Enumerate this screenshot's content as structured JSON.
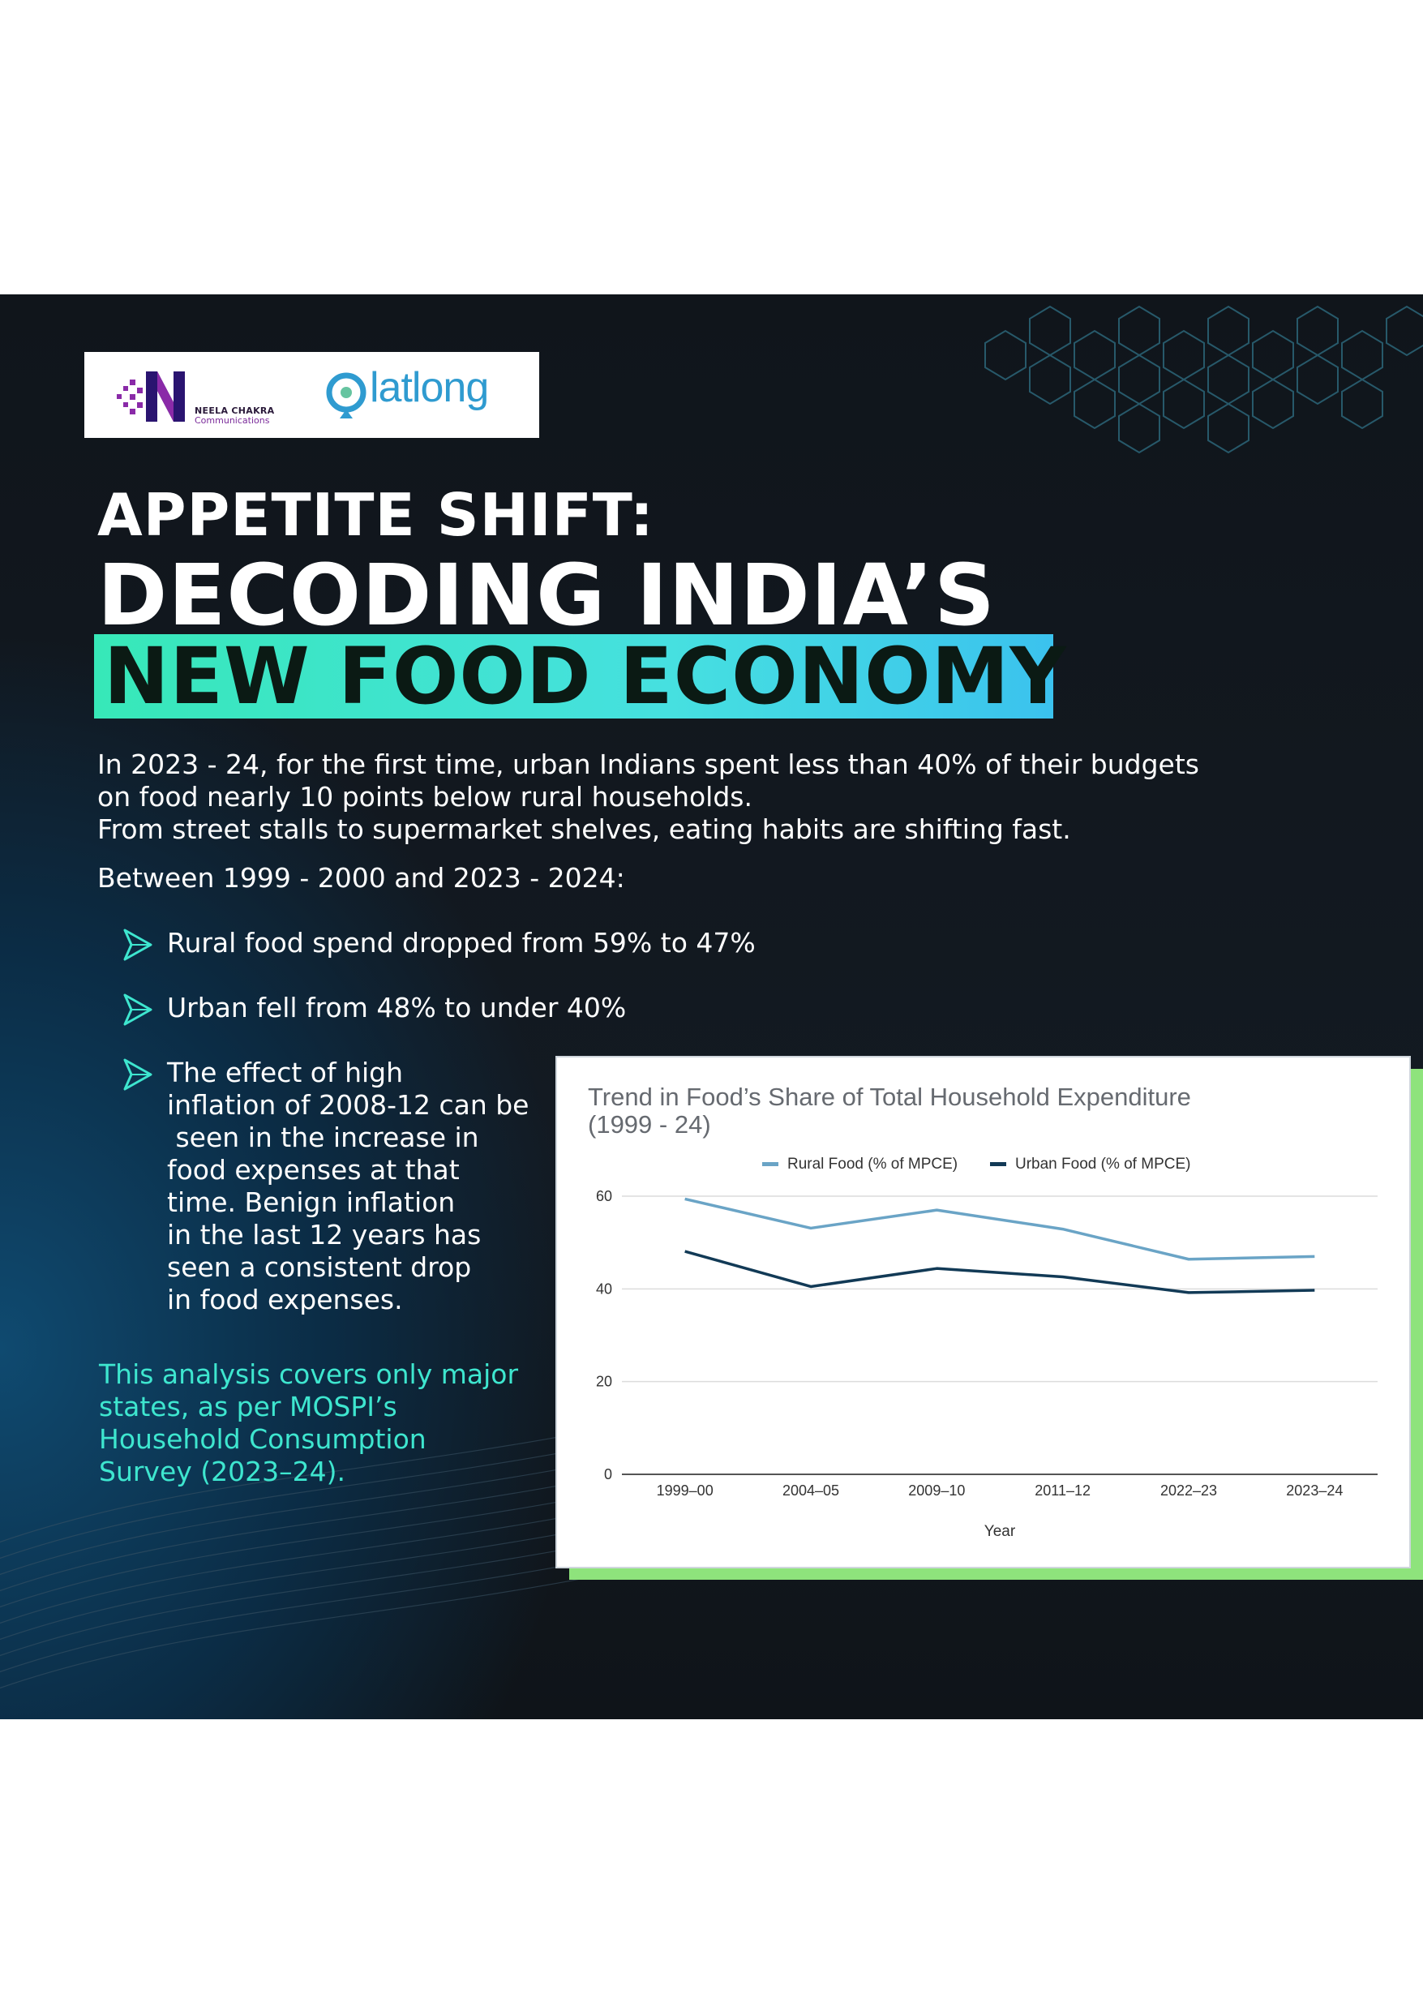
{
  "logos": {
    "neela_name": "NEELA CHAKRA",
    "neela_sub": "Communications",
    "latlong": "latlong"
  },
  "headline": {
    "line1": "APPETITE SHIFT:",
    "line2": "DECODING INDIA’S",
    "line3": "NEW FOOD ECONOMY"
  },
  "intro": [
    "In 2023 - 24, for the first time, urban Indians spent less than 40% of their budgets",
    "on food nearly 10 points below rural households.",
    "From street stalls to supermarket shelves, eating habits are shifting fast."
  ],
  "between": "Between 1999 - 2000 and 2023 - 2024:",
  "bullets": {
    "b1": "Rural food spend dropped from 59% to 47%",
    "b2": "Urban fell from 48% to under 40%",
    "b3": [
      "The effect of high",
      "inflation of 2008-12 can be",
      " seen in the increase in",
      "food expenses at that",
      "time. Benign inflation",
      "in the last 12 years has",
      "seen a consistent drop",
      "in food expenses."
    ]
  },
  "note": [
    "This analysis covers only major",
    "states, as per MOSPI’s",
    "Household Consumption",
    "Survey (2023–24)."
  ],
  "colors": {
    "rural": "#6aa4c6",
    "urban": "#123a56",
    "accent": "#3ee6cf"
  },
  "chart_data": {
    "type": "line",
    "title": [
      "Trend in Food’s Share of Total Household Expenditure",
      "(1999 - 24)"
    ],
    "categories": [
      "1999–00",
      "2004–05",
      "2009–10",
      "2011–12",
      "2022–23",
      "2023–24"
    ],
    "series": [
      {
        "name": "Rural Food (% of MPCE)",
        "values": [
          59.4,
          53.1,
          57.0,
          52.9,
          46.4,
          47.0
        ]
      },
      {
        "name": "Urban Food (% of MPCE)",
        "values": [
          48.1,
          40.5,
          44.4,
          42.6,
          39.2,
          39.7
        ]
      }
    ],
    "xlabel": "Year",
    "ylabel": "",
    "yticks": [
      0,
      20,
      40,
      60
    ],
    "ylim": [
      0,
      60
    ],
    "grid": true,
    "legend": "top"
  }
}
